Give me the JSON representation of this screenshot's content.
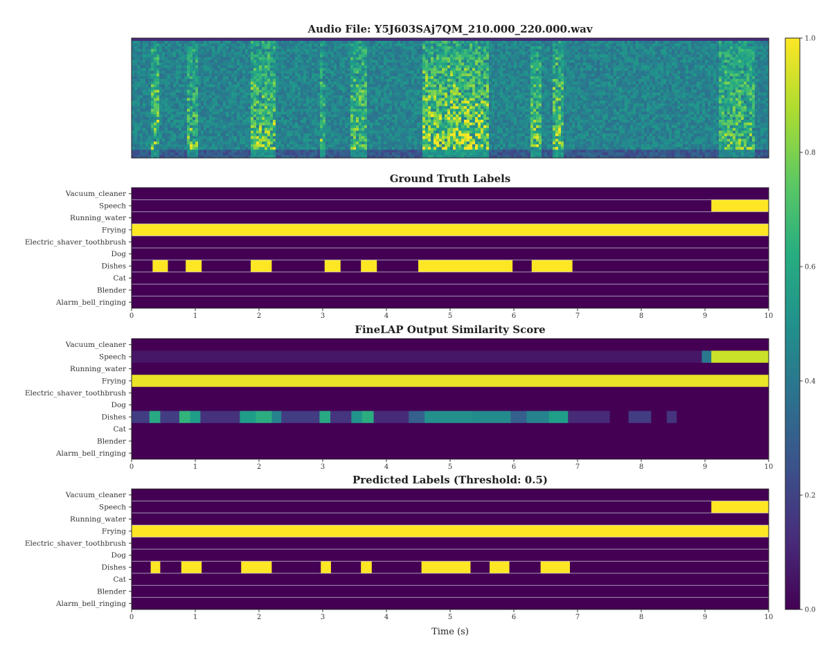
{
  "chart_data": [
    {
      "type": "heatmap",
      "panel": "spectrogram",
      "title": "Audio File: Y5J603SAj7QM_210.000_220.000.wav",
      "colormap": "viridis",
      "xlim": [
        0,
        10
      ],
      "bright_regions": [
        {
          "start": 0.3,
          "end": 0.45,
          "level": 0.78
        },
        {
          "start": 0.85,
          "end": 1.05,
          "level": 0.72
        },
        {
          "start": 1.85,
          "end": 2.25,
          "level": 0.78
        },
        {
          "start": 2.95,
          "end": 3.05,
          "level": 0.7
        },
        {
          "start": 3.45,
          "end": 3.7,
          "level": 0.74
        },
        {
          "start": 4.55,
          "end": 5.6,
          "level": 0.86
        },
        {
          "start": 6.25,
          "end": 6.45,
          "level": 0.74
        },
        {
          "start": 6.6,
          "end": 6.8,
          "level": 0.8
        },
        {
          "start": 9.2,
          "end": 9.8,
          "level": 0.72
        }
      ]
    },
    {
      "type": "heatmap",
      "panel": "ground_truth",
      "title": "Ground Truth Labels",
      "rows": [
        "Vacuum_cleaner",
        "Speech",
        "Running_water",
        "Frying",
        "Electric_shaver_toothbrush",
        "Dog",
        "Dishes",
        "Cat",
        "Blender",
        "Alarm_bell_ringing"
      ],
      "xlim": [
        0,
        10
      ],
      "xticks": [
        "0",
        "1",
        "2",
        "3",
        "4",
        "5",
        "6",
        "7",
        "8",
        "9",
        "10"
      ],
      "active_segments": {
        "Speech": [
          [
            9.1,
            10.0
          ]
        ],
        "Frying": [
          [
            0.0,
            10.0
          ]
        ],
        "Dishes": [
          [
            0.33,
            0.57
          ],
          [
            0.85,
            1.1
          ],
          [
            1.87,
            2.2
          ],
          [
            3.03,
            3.28
          ],
          [
            3.6,
            3.85
          ],
          [
            4.5,
            5.98
          ],
          [
            6.28,
            6.92
          ]
        ]
      }
    },
    {
      "type": "heatmap",
      "panel": "similarity",
      "title": "FineLAP Output Similarity Score",
      "rows": [
        "Vacuum_cleaner",
        "Speech",
        "Running_water",
        "Frying",
        "Electric_shaver_toothbrush",
        "Dog",
        "Dishes",
        "Cat",
        "Blender",
        "Alarm_bell_ringing"
      ],
      "xlim": [
        0,
        10
      ],
      "xticks": [
        "0",
        "1",
        "2",
        "3",
        "4",
        "5",
        "6",
        "7",
        "8",
        "9",
        "10"
      ],
      "score_segments": {
        "Speech": [
          [
            0.0,
            8.95,
            0.06
          ],
          [
            8.95,
            9.1,
            0.4
          ],
          [
            9.1,
            10.0,
            0.92
          ]
        ],
        "Frying": [
          [
            0.0,
            10.0,
            0.97
          ]
        ],
        "Dishes": [
          [
            0.0,
            0.28,
            0.18
          ],
          [
            0.28,
            0.45,
            0.6
          ],
          [
            0.45,
            0.75,
            0.18
          ],
          [
            0.75,
            0.92,
            0.65
          ],
          [
            0.92,
            1.08,
            0.55
          ],
          [
            1.08,
            1.7,
            0.14
          ],
          [
            1.7,
            1.95,
            0.55
          ],
          [
            1.95,
            2.2,
            0.62
          ],
          [
            2.2,
            2.35,
            0.45
          ],
          [
            2.35,
            2.95,
            0.18
          ],
          [
            2.95,
            3.12,
            0.6
          ],
          [
            3.12,
            3.45,
            0.15
          ],
          [
            3.45,
            3.62,
            0.52
          ],
          [
            3.62,
            3.8,
            0.62
          ],
          [
            3.8,
            4.35,
            0.12
          ],
          [
            4.35,
            4.6,
            0.3
          ],
          [
            4.6,
            5.35,
            0.5
          ],
          [
            5.35,
            5.95,
            0.48
          ],
          [
            5.95,
            6.2,
            0.3
          ],
          [
            6.2,
            6.55,
            0.45
          ],
          [
            6.55,
            6.85,
            0.56
          ],
          [
            6.85,
            7.5,
            0.12
          ],
          [
            7.8,
            8.15,
            0.18
          ],
          [
            8.4,
            8.55,
            0.15
          ]
        ]
      }
    },
    {
      "type": "heatmap",
      "panel": "predicted",
      "title": "Predicted Labels (Threshold: 0.5)",
      "rows": [
        "Vacuum_cleaner",
        "Speech",
        "Running_water",
        "Frying",
        "Electric_shaver_toothbrush",
        "Dog",
        "Dishes",
        "Cat",
        "Blender",
        "Alarm_bell_ringing"
      ],
      "xlim": [
        0,
        10
      ],
      "xticks": [
        "0",
        "1",
        "2",
        "3",
        "4",
        "5",
        "6",
        "7",
        "8",
        "9",
        "10"
      ],
      "xlabel": "Time (s)",
      "threshold": 0.5,
      "active_segments": {
        "Speech": [
          [
            9.1,
            10.0
          ]
        ],
        "Frying": [
          [
            0.0,
            10.0
          ]
        ],
        "Dishes": [
          [
            0.3,
            0.45
          ],
          [
            0.78,
            1.1
          ],
          [
            1.72,
            2.2
          ],
          [
            2.97,
            3.13
          ],
          [
            3.6,
            3.77
          ],
          [
            4.55,
            5.32
          ],
          [
            5.62,
            5.93
          ],
          [
            6.42,
            6.88
          ]
        ]
      }
    },
    {
      "type": "colorbar",
      "colormap": "viridis",
      "range": [
        0.0,
        1.0
      ],
      "ticks": [
        "0.0",
        "0.2",
        "0.4",
        "0.6",
        "0.8",
        "1.0"
      ]
    }
  ]
}
